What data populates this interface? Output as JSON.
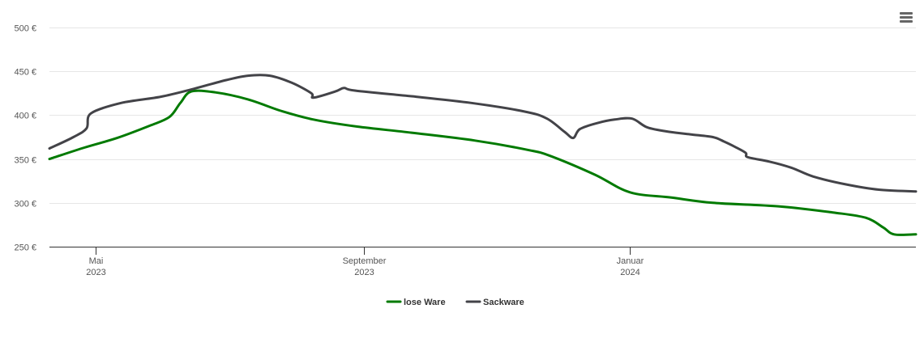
{
  "chart_data": {
    "type": "line",
    "title": "",
    "xlabel": "",
    "ylabel": "",
    "ylim": [
      250,
      500
    ],
    "y_ticks": [
      {
        "value": 250,
        "label": "250 €"
      },
      {
        "value": 300,
        "label": "300 €"
      },
      {
        "value": 350,
        "label": "350 €"
      },
      {
        "value": 400,
        "label": "400 €"
      },
      {
        "value": 450,
        "label": "450 €"
      },
      {
        "value": 500,
        "label": "500 €"
      }
    ],
    "xlim": [
      "2023-04-10",
      "2024-05-11"
    ],
    "x_ticks": [
      {
        "date": "2023-05-01",
        "month": "Mai",
        "year": "2023"
      },
      {
        "date": "2023-09-01",
        "month": "September",
        "year": "2023"
      },
      {
        "date": "2024-01-01",
        "month": "Januar",
        "year": "2024"
      }
    ],
    "grid": true,
    "legend_position": "bottom-center",
    "series": [
      {
        "name": "lose Ware",
        "color": "#007a00",
        "points": [
          [
            "2023-04-10",
            350
          ],
          [
            "2023-04-26",
            363
          ],
          [
            "2023-05-11",
            374
          ],
          [
            "2023-05-26",
            388
          ],
          [
            "2023-06-04",
            398
          ],
          [
            "2023-06-09",
            414
          ],
          [
            "2023-06-14",
            427
          ],
          [
            "2023-06-25",
            426
          ],
          [
            "2023-07-10",
            418
          ],
          [
            "2023-07-25",
            405
          ],
          [
            "2023-08-09",
            395
          ],
          [
            "2023-08-29",
            387
          ],
          [
            "2023-09-23",
            380
          ],
          [
            "2023-10-22",
            371
          ],
          [
            "2023-11-16",
            360
          ],
          [
            "2023-11-26",
            353
          ],
          [
            "2023-12-16",
            332
          ],
          [
            "2024-01-01",
            312
          ],
          [
            "2024-01-20",
            306
          ],
          [
            "2024-02-08",
            300
          ],
          [
            "2024-03-09",
            296
          ],
          [
            "2024-04-03",
            289
          ],
          [
            "2024-04-18",
            283
          ],
          [
            "2024-04-26",
            272
          ],
          [
            "2024-05-01",
            264
          ],
          [
            "2024-05-11",
            264
          ]
        ]
      },
      {
        "name": "Sackware",
        "color": "#434348",
        "points": [
          [
            "2023-04-10",
            362
          ],
          [
            "2023-04-21",
            375
          ],
          [
            "2023-04-27",
            385
          ],
          [
            "2023-04-29",
            402
          ],
          [
            "2023-05-13",
            414
          ],
          [
            "2023-05-31",
            421
          ],
          [
            "2023-06-15",
            430
          ],
          [
            "2023-06-30",
            440
          ],
          [
            "2023-07-10",
            445
          ],
          [
            "2023-07-20",
            445
          ],
          [
            "2023-07-30",
            437
          ],
          [
            "2023-08-08",
            425
          ],
          [
            "2023-08-09",
            420
          ],
          [
            "2023-08-19",
            427
          ],
          [
            "2023-08-23",
            431
          ],
          [
            "2023-08-28",
            428
          ],
          [
            "2023-09-25",
            421
          ],
          [
            "2023-10-20",
            414
          ],
          [
            "2023-11-14",
            404
          ],
          [
            "2023-11-24",
            396
          ],
          [
            "2023-12-02",
            381
          ],
          [
            "2023-12-06",
            374
          ],
          [
            "2023-12-09",
            384
          ],
          [
            "2023-12-17",
            391
          ],
          [
            "2023-12-25",
            395
          ],
          [
            "2024-01-02",
            396
          ],
          [
            "2024-01-09",
            386
          ],
          [
            "2024-01-19",
            381
          ],
          [
            "2024-01-29",
            378
          ],
          [
            "2024-02-08",
            375
          ],
          [
            "2024-02-13",
            370
          ],
          [
            "2024-02-18",
            364
          ],
          [
            "2024-02-23",
            357
          ],
          [
            "2024-02-24",
            352
          ],
          [
            "2024-03-05",
            347
          ],
          [
            "2024-03-15",
            340
          ],
          [
            "2024-03-25",
            330
          ],
          [
            "2024-04-09",
            321
          ],
          [
            "2024-04-24",
            315
          ],
          [
            "2024-05-11",
            313
          ]
        ]
      }
    ]
  },
  "ui": {
    "menu_icon": "hamburger-menu-icon"
  }
}
